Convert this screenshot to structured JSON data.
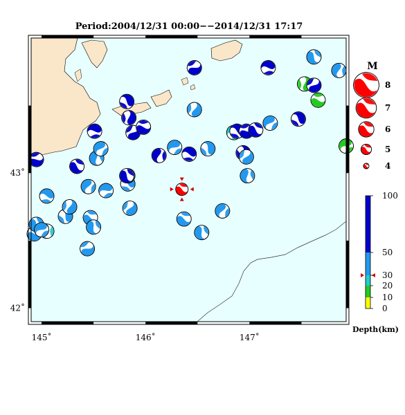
{
  "title": "Period:2004/12/31 00:00−−2014/12/31 17:17",
  "map": {
    "longitude_ticks": [
      {
        "value": 145,
        "label": "145˚"
      },
      {
        "value": 146,
        "label": "146˚"
      },
      {
        "value": 147,
        "label": "147˚"
      }
    ],
    "latitude_ticks": [
      {
        "value": 43,
        "label": "43˚"
      },
      {
        "value": 42,
        "label": "42˚"
      }
    ],
    "colors": {
      "ocean": "#e8ffff",
      "land": "#fae6c8",
      "frame": "#000000"
    },
    "main_event": {
      "lon": 146.35,
      "lat": 42.88,
      "magnitude": 5,
      "depth_km": 30,
      "color": "#ff0000"
    },
    "events": [
      {
        "lon": 144.93,
        "lat": 42.55,
        "depth_km": 40
      },
      {
        "lon": 144.95,
        "lat": 42.62,
        "depth_km": 40
      },
      {
        "lon": 145.05,
        "lat": 42.57,
        "depth_km": 20
      },
      {
        "lon": 145.0,
        "lat": 42.58,
        "depth_km": 40
      },
      {
        "lon": 145.05,
        "lat": 42.83,
        "depth_km": 40
      },
      {
        "lon": 145.23,
        "lat": 42.68,
        "depth_km": 40
      },
      {
        "lon": 145.27,
        "lat": 42.75,
        "depth_km": 40
      },
      {
        "lon": 145.44,
        "lat": 42.44,
        "depth_km": 40
      },
      {
        "lon": 145.47,
        "lat": 42.67,
        "depth_km": 40
      },
      {
        "lon": 145.5,
        "lat": 42.6,
        "depth_km": 40
      },
      {
        "lon": 145.45,
        "lat": 42.9,
        "depth_km": 40
      },
      {
        "lon": 145.62,
        "lat": 42.87,
        "depth_km": 40
      },
      {
        "lon": 145.83,
        "lat": 42.92,
        "depth_km": 40
      },
      {
        "lon": 145.83,
        "lat": 42.98,
        "depth_km": 40
      },
      {
        "lon": 145.85,
        "lat": 42.74,
        "depth_km": 40
      },
      {
        "lon": 144.95,
        "lat": 43.1,
        "depth_km": 70
      },
      {
        "lon": 145.34,
        "lat": 43.05,
        "depth_km": 70
      },
      {
        "lon": 145.53,
        "lat": 43.11,
        "depth_km": 40
      },
      {
        "lon": 145.57,
        "lat": 43.18,
        "depth_km": 40
      },
      {
        "lon": 145.51,
        "lat": 43.31,
        "depth_km": 70
      },
      {
        "lon": 145.82,
        "lat": 43.53,
        "depth_km": 70
      },
      {
        "lon": 145.84,
        "lat": 43.41,
        "depth_km": 70
      },
      {
        "lon": 145.88,
        "lat": 43.3,
        "depth_km": 70
      },
      {
        "lon": 145.98,
        "lat": 43.34,
        "depth_km": 70
      },
      {
        "lon": 145.82,
        "lat": 42.98,
        "depth_km": 70
      },
      {
        "lon": 146.13,
        "lat": 43.13,
        "depth_km": 70
      },
      {
        "lon": 146.28,
        "lat": 43.19,
        "depth_km": 40
      },
      {
        "lon": 146.42,
        "lat": 43.14,
        "depth_km": 70
      },
      {
        "lon": 146.6,
        "lat": 43.18,
        "depth_km": 40
      },
      {
        "lon": 146.47,
        "lat": 43.47,
        "depth_km": 40
      },
      {
        "lon": 146.47,
        "lat": 43.78,
        "depth_km": 70
      },
      {
        "lon": 146.37,
        "lat": 42.66,
        "depth_km": 40
      },
      {
        "lon": 146.54,
        "lat": 42.56,
        "depth_km": 40
      },
      {
        "lon": 146.74,
        "lat": 42.72,
        "depth_km": 40
      },
      {
        "lon": 146.85,
        "lat": 43.3,
        "depth_km": 25
      },
      {
        "lon": 146.88,
        "lat": 43.31,
        "depth_km": 70
      },
      {
        "lon": 146.94,
        "lat": 43.15,
        "depth_km": 70
      },
      {
        "lon": 146.97,
        "lat": 43.12,
        "depth_km": 40
      },
      {
        "lon": 146.97,
        "lat": 43.31,
        "depth_km": 70
      },
      {
        "lon": 147.06,
        "lat": 43.32,
        "depth_km": 70
      },
      {
        "lon": 146.98,
        "lat": 42.98,
        "depth_km": 40
      },
      {
        "lon": 147.2,
        "lat": 43.37,
        "depth_km": 40
      },
      {
        "lon": 147.18,
        "lat": 43.78,
        "depth_km": 70
      },
      {
        "lon": 147.47,
        "lat": 43.4,
        "depth_km": 70
      },
      {
        "lon": 147.53,
        "lat": 43.66,
        "depth_km": 15
      },
      {
        "lon": 147.62,
        "lat": 43.65,
        "depth_km": 70
      },
      {
        "lon": 147.66,
        "lat": 43.54,
        "depth_km": 15
      },
      {
        "lon": 147.62,
        "lat": 43.86,
        "depth_km": 40
      },
      {
        "lon": 147.86,
        "lat": 43.76,
        "depth_km": 40
      },
      {
        "lon": 147.93,
        "lat": 43.2,
        "depth_km": 15
      }
    ]
  },
  "magnitude_legend": {
    "title": "M",
    "items": [
      {
        "label": "8",
        "magnitude": 8
      },
      {
        "label": "7",
        "magnitude": 7
      },
      {
        "label": "6",
        "magnitude": 6
      },
      {
        "label": "5",
        "magnitude": 5
      },
      {
        "label": "4",
        "magnitude": 4
      }
    ]
  },
  "depth_scale": {
    "title": "Depth(km)",
    "ticks": [
      {
        "value": 100,
        "label": "100"
      },
      {
        "value": 50,
        "label": "50"
      },
      {
        "value": 30,
        "label": "30"
      },
      {
        "value": 20,
        "label": "20"
      },
      {
        "value": 10,
        "label": "10"
      },
      {
        "value": 0,
        "label": "0"
      }
    ],
    "bands": [
      {
        "from": 0,
        "to": 10,
        "color": "#ffff00"
      },
      {
        "from": 10,
        "to": 20,
        "color": "#22cc22"
      },
      {
        "from": 20,
        "to": 30,
        "color": "#22cccc"
      },
      {
        "from": 30,
        "to": 50,
        "color": "#2299ee"
      },
      {
        "from": 50,
        "to": 100,
        "color": "#0000cc"
      }
    ],
    "marker_depth": 30,
    "marker_color": "#cc0000"
  }
}
